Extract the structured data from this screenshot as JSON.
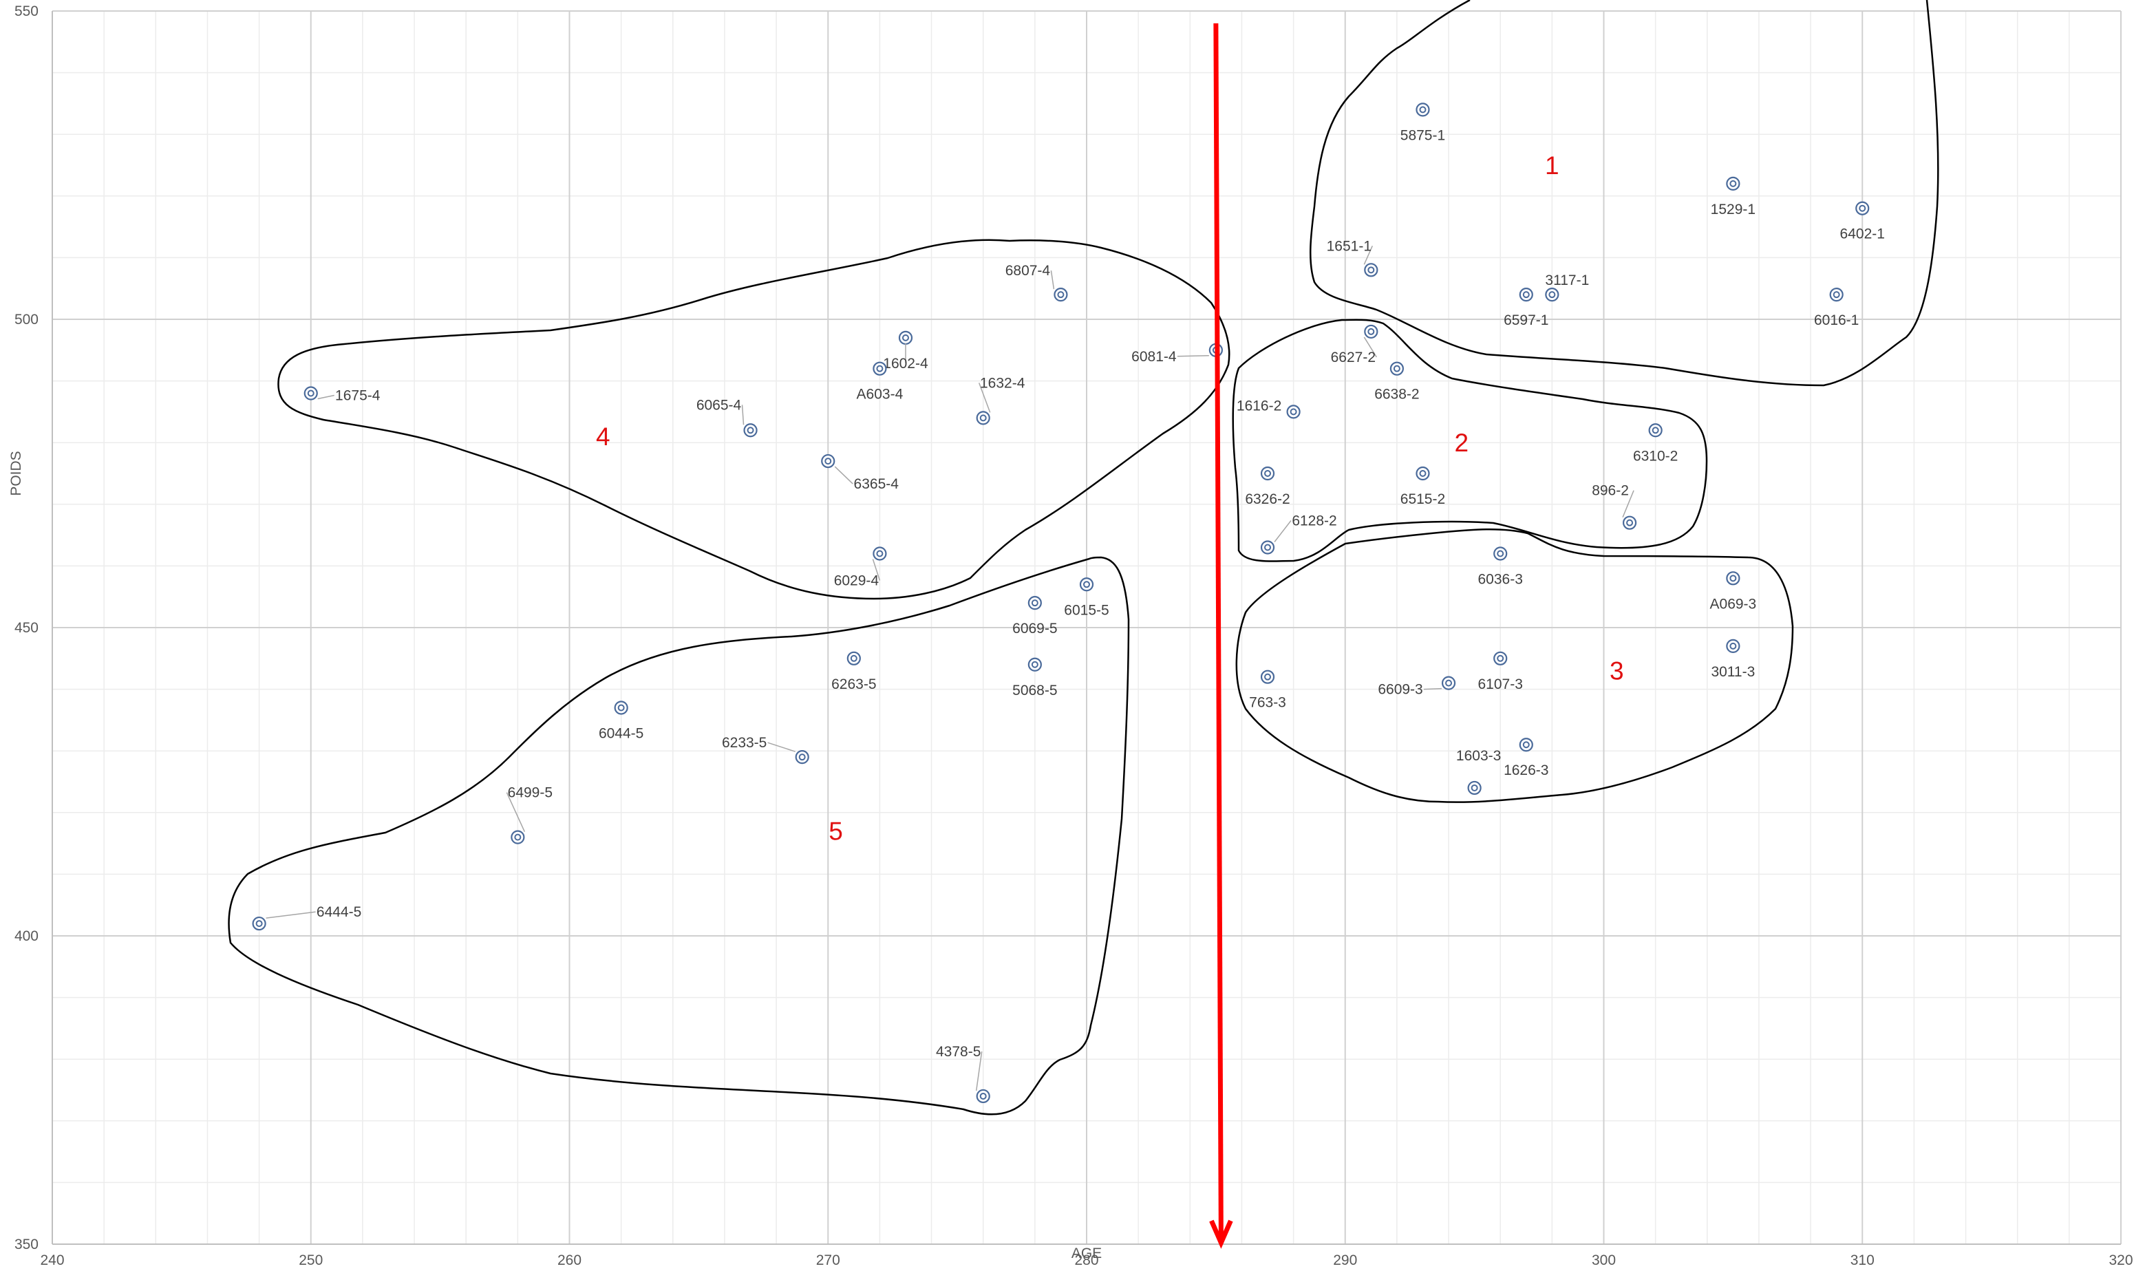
{
  "chart_data": {
    "type": "scatter",
    "xlabel": "AGE",
    "ylabel": "POIDS",
    "xlim": [
      240,
      320
    ],
    "ylim": [
      350,
      550
    ],
    "x_ticks": [
      240,
      250,
      260,
      270,
      280,
      290,
      300,
      310,
      320
    ],
    "y_ticks": [
      350,
      400,
      450,
      500,
      550
    ],
    "grid": true,
    "colors": {
      "marker": "#4a6a9a",
      "cluster_line": "#000000",
      "arrow": "#ff0000",
      "cluster_label": "#e01010"
    },
    "points": [
      {
        "label": "5875-1",
        "x": 293,
        "y": 534
      },
      {
        "label": "1529-1",
        "x": 305,
        "y": 522
      },
      {
        "label": "6402-1",
        "x": 310,
        "y": 518
      },
      {
        "label": "1651-1",
        "x": 291,
        "y": 508
      },
      {
        "label": "6597-1",
        "x": 297,
        "y": 504
      },
      {
        "label": "3117-1",
        "x": 298,
        "y": 504
      },
      {
        "label": "6016-1",
        "x": 309,
        "y": 504
      },
      {
        "label": "6627-2",
        "x": 291,
        "y": 498
      },
      {
        "label": "6638-2",
        "x": 292,
        "y": 492
      },
      {
        "label": "1616-2",
        "x": 288,
        "y": 485
      },
      {
        "label": "6310-2",
        "x": 302,
        "y": 482
      },
      {
        "label": "6326-2",
        "x": 287,
        "y": 475
      },
      {
        "label": "6515-2",
        "x": 293,
        "y": 475
      },
      {
        "label": "896-2",
        "x": 301,
        "y": 467
      },
      {
        "label": "6128-2",
        "x": 287,
        "y": 463
      },
      {
        "label": "6036-3",
        "x": 296,
        "y": 462
      },
      {
        "label": "A069-3",
        "x": 305,
        "y": 458
      },
      {
        "label": "3011-3",
        "x": 305,
        "y": 447
      },
      {
        "label": "6107-3",
        "x": 296,
        "y": 445
      },
      {
        "label": "763-3",
        "x": 287,
        "y": 442
      },
      {
        "label": "6609-3",
        "x": 294,
        "y": 441
      },
      {
        "label": "1626-3",
        "x": 297,
        "y": 431
      },
      {
        "label": "1603-3",
        "x": 295,
        "y": 424
      },
      {
        "label": "6807-4",
        "x": 279,
        "y": 504
      },
      {
        "label": "1602-4",
        "x": 273,
        "y": 497
      },
      {
        "label": "6081-4",
        "x": 285,
        "y": 495
      },
      {
        "label": "A603-4",
        "x": 272,
        "y": 492
      },
      {
        "label": "1675-4",
        "x": 250,
        "y": 488
      },
      {
        "label": "1632-4",
        "x": 276,
        "y": 484
      },
      {
        "label": "6065-4",
        "x": 267,
        "y": 482
      },
      {
        "label": "6365-4",
        "x": 270,
        "y": 477
      },
      {
        "label": "6029-4",
        "x": 272,
        "y": 462
      },
      {
        "label": "6015-5",
        "x": 280,
        "y": 457
      },
      {
        "label": "6069-5",
        "x": 278,
        "y": 454
      },
      {
        "label": "6263-5",
        "x": 271,
        "y": 445
      },
      {
        "label": "5068-5",
        "x": 278,
        "y": 444
      },
      {
        "label": "6044-5",
        "x": 262,
        "y": 437
      },
      {
        "label": "6233-5",
        "x": 269,
        "y": 429
      },
      {
        "label": "6499-5",
        "x": 258,
        "y": 416
      },
      {
        "label": "6444-5",
        "x": 248,
        "y": 402
      },
      {
        "label": "4378-5",
        "x": 276,
        "y": 374
      }
    ],
    "clusters": [
      {
        "label": "1",
        "x": 298,
        "y": 525
      },
      {
        "label": "2",
        "x": 294.5,
        "y": 480
      },
      {
        "label": "3",
        "x": 300.5,
        "y": 443
      },
      {
        "label": "4",
        "x": 261.3,
        "y": 481
      },
      {
        "label": "5",
        "x": 270.3,
        "y": 417
      }
    ],
    "arrow": {
      "x_start": 285,
      "y_start": 548,
      "x_end": 285.2,
      "y_end": 350
    }
  }
}
